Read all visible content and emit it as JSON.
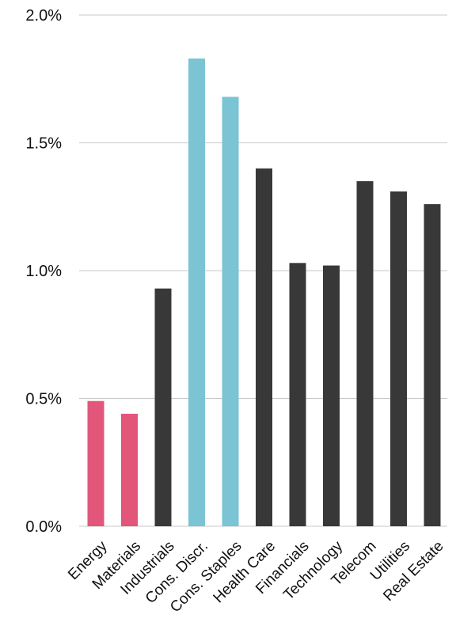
{
  "chart_data": {
    "type": "bar",
    "title": "",
    "xlabel": "",
    "ylabel": "",
    "ylim": [
      0,
      2.0
    ],
    "yticks": [
      "0.0%",
      "0.5%",
      "1.0%",
      "1.5%",
      "2.0%"
    ],
    "grid": true,
    "categories": [
      "Energy",
      "Materials",
      "Industrials",
      "Cons. Discr.",
      "Cons. Staples",
      "Health Care",
      "Financials",
      "Technology",
      "Telecom",
      "Utilities",
      "Real Estate"
    ],
    "values": [
      0.49,
      0.44,
      0.93,
      1.83,
      1.68,
      1.4,
      1.03,
      1.02,
      1.35,
      1.31,
      1.26
    ],
    "colors": [
      "#e2567a",
      "#e2567a",
      "#383838",
      "#7ac4d4",
      "#7ac4d4",
      "#383838",
      "#383838",
      "#383838",
      "#383838",
      "#383838",
      "#383838"
    ]
  }
}
